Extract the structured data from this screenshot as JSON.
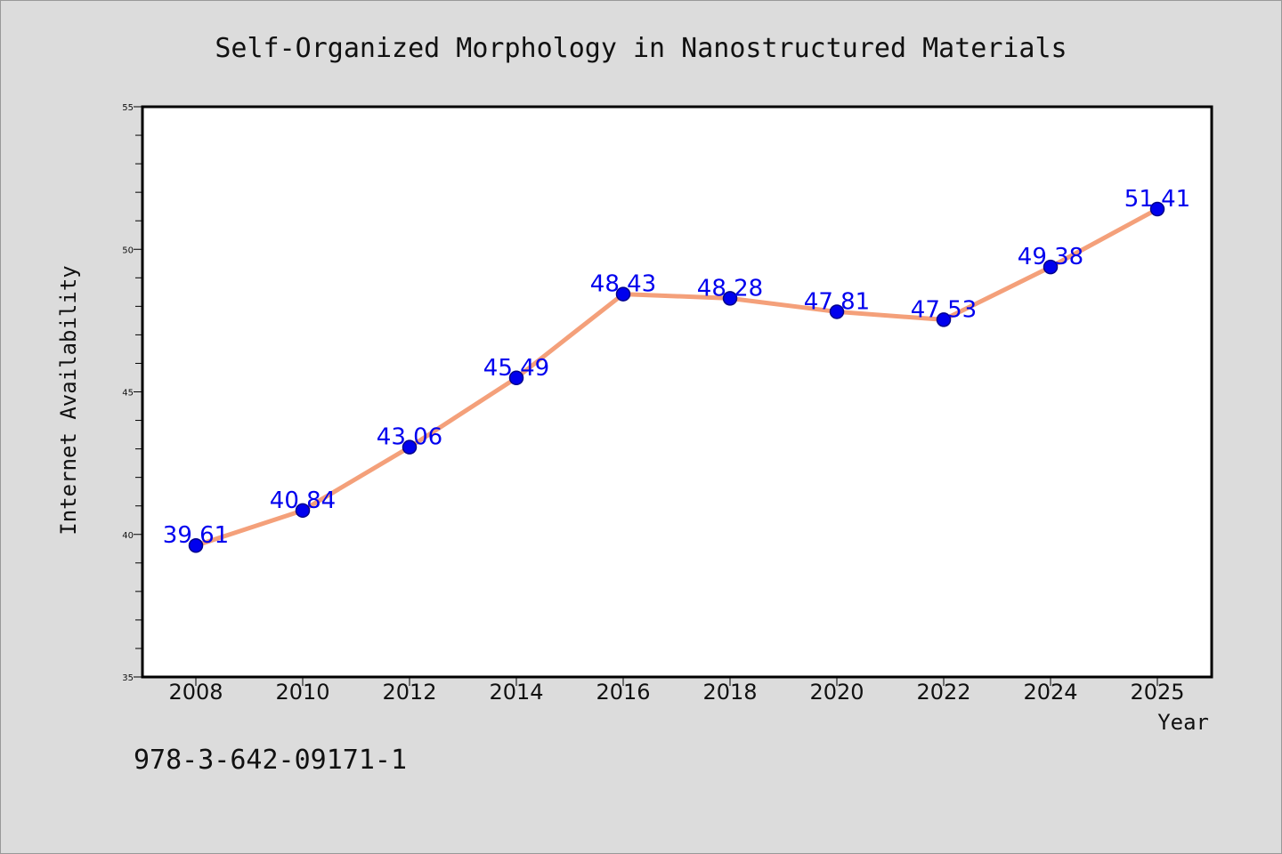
{
  "footer_code": "978-3-642-09171-1",
  "chart_data": {
    "type": "line",
    "title": "Self-Organized Morphology in Nanostructured Materials",
    "xlabel": "Year",
    "ylabel": "Internet Availability",
    "x": [
      "2008",
      "2010",
      "2012",
      "2014",
      "2016",
      "2018",
      "2020",
      "2022",
      "2024",
      "2025"
    ],
    "series": [
      {
        "values": [
          39.61,
          40.84,
          43.06,
          45.49,
          48.43,
          48.28,
          47.81,
          47.53,
          49.38,
          51.41
        ],
        "line_color": "#f4a07a",
        "marker_color": "#0000ee"
      }
    ],
    "data_labels": [
      "39.61",
      "40.84",
      "43.06",
      "45.49",
      "48.43",
      "48.28",
      "47.81",
      "47.53",
      "49.38",
      "51.41"
    ],
    "ylim": [
      35,
      55
    ],
    "yticks": [
      "35",
      "40",
      "45",
      "50",
      "55"
    ],
    "grid": false,
    "legend": "none"
  }
}
